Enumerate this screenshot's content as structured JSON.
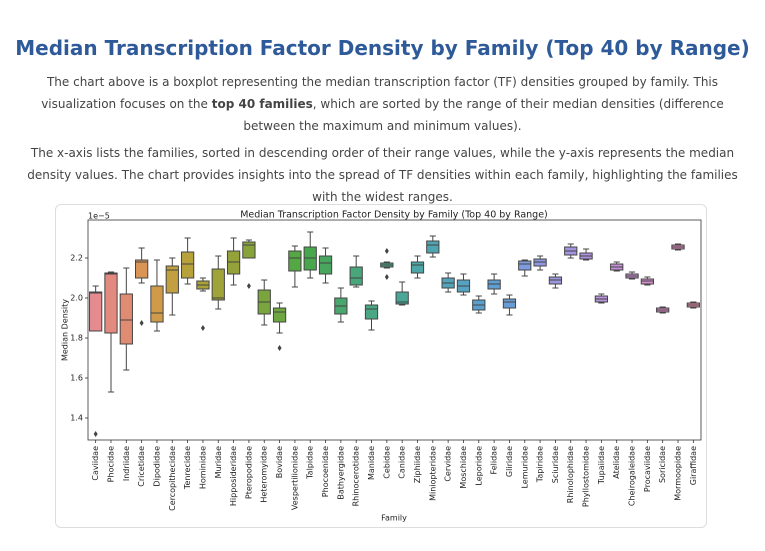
{
  "header": {
    "title": "Median Transcription Factor Density by Family (Top 40 by Range)"
  },
  "paragraphs": [
    [
      "The chart above is a boxplot representing the median transcription factor (TF) densities grouped by family. This visualization focuses on the ",
      "top 40 families",
      ", which are sorted by the range of their median densities (difference between the maximum and minimum values)."
    ],
    [
      "The x-axis lists the families, sorted in descending order of their range values, while the y-axis represents the median density values. The chart provides insights into the spread of TF densities within each family, highlighting the families with the widest ranges."
    ]
  ],
  "chart_data": {
    "type": "boxplot",
    "title": "Median Transcription Factor Density by Family (Top 40 by Range)",
    "x_label": "Family",
    "y_label": "Median Density",
    "y_offset_label": "1e−5",
    "ylim": [
      1.29,
      2.39
    ],
    "yticks": [
      {
        "value": 1.4,
        "label": "1.4"
      },
      {
        "value": 1.6,
        "label": "1.6"
      },
      {
        "value": 1.8,
        "label": "1.8"
      },
      {
        "value": 2.0,
        "label": "2.0"
      },
      {
        "value": 2.2,
        "label": "2.2"
      }
    ],
    "categories": [
      "Caviidae",
      "Phocidae",
      "Indriidae",
      "Cricetidae",
      "Dipodidae",
      "Cercopithecidae",
      "Tenrecidae",
      "Hominidae",
      "Muridae",
      "Hipposideridae",
      "Pteropodidae",
      "Heteromyidae",
      "Bovidae",
      "Vespertilionidae",
      "Talpidae",
      "Phocoenidae",
      "Bathyergidae",
      "Rhinocerotidae",
      "Manidae",
      "Cebidae",
      "Canidae",
      "Ziphiidae",
      "Miniopteridae",
      "Cervidae",
      "Moschidae",
      "Leporidae",
      "Felidae",
      "Gliridae",
      "Lemuridae",
      "Tapiridae",
      "Sciuridae",
      "Rhinolophidae",
      "Phyllostomidae",
      "Tupaiidae",
      "Atelidae",
      "Cheirogaleidae",
      "Procaviidae",
      "Soricidae",
      "Mormoopidae",
      "Giraffidae"
    ],
    "colors": [
      "#e58a8f",
      "#e38a80",
      "#e08c72",
      "#d99556",
      "#cf9b4a",
      "#c29f41",
      "#b6a13b",
      "#aaa239",
      "#a0a23a",
      "#95a23a",
      "#89a33b",
      "#79a43e",
      "#6ea640",
      "#55a744",
      "#48a74c",
      "#49a65e",
      "#4aa66e",
      "#49a67a",
      "#49a783",
      "#48a78c",
      "#4aa798",
      "#4ca6a5",
      "#4ea5b0",
      "#52a4ba",
      "#56a2c3",
      "#5ba0cc",
      "#619fd3",
      "#689cd9",
      "#7f9be0",
      "#8e98e0",
      "#9a96e0",
      "#a494e0",
      "#ad93df",
      "#b892dd",
      "#c391d9",
      "#cc8fd4",
      "#d48ccd",
      "#da8ac3",
      "#df89b8",
      "#e288ab"
    ],
    "boxes": [
      {
        "min": 1.835,
        "q1": 1.835,
        "median": 2.025,
        "q3": 2.03,
        "max": 2.06,
        "outliers": [
          1.32
        ]
      },
      {
        "min": 1.53,
        "q1": 1.825,
        "median": 2.12,
        "q3": 2.125,
        "max": 2.13,
        "outliers": []
      },
      {
        "min": 1.64,
        "q1": 1.77,
        "median": 1.89,
        "q3": 2.02,
        "max": 2.15,
        "outliers": []
      },
      {
        "min": 2.075,
        "q1": 2.1,
        "median": 2.18,
        "q3": 2.19,
        "max": 2.25,
        "outliers": [
          1.875
        ]
      },
      {
        "min": 1.835,
        "q1": 1.88,
        "median": 1.925,
        "q3": 2.06,
        "max": 2.19,
        "outliers": []
      },
      {
        "min": 1.915,
        "q1": 2.025,
        "median": 2.14,
        "q3": 2.16,
        "max": 2.2,
        "outliers": []
      },
      {
        "min": 2.07,
        "q1": 2.1,
        "median": 2.17,
        "q3": 2.23,
        "max": 2.3,
        "outliers": []
      },
      {
        "min": 2.035,
        "q1": 2.045,
        "median": 2.065,
        "q3": 2.085,
        "max": 2.1,
        "outliers": [
          1.85
        ]
      },
      {
        "min": 1.945,
        "q1": 1.99,
        "median": 2.0,
        "q3": 2.145,
        "max": 2.21,
        "outliers": []
      },
      {
        "min": 2.065,
        "q1": 2.12,
        "median": 2.18,
        "q3": 2.235,
        "max": 2.3,
        "outliers": []
      },
      {
        "min": 2.2,
        "q1": 2.2,
        "median": 2.265,
        "q3": 2.28,
        "max": 2.29,
        "outliers": [
          2.06
        ]
      },
      {
        "min": 1.865,
        "q1": 1.92,
        "median": 1.98,
        "q3": 2.04,
        "max": 2.09,
        "outliers": []
      },
      {
        "min": 1.825,
        "q1": 1.88,
        "median": 1.93,
        "q3": 1.95,
        "max": 1.975,
        "outliers": [
          1.75
        ]
      },
      {
        "min": 2.055,
        "q1": 2.135,
        "median": 2.2,
        "q3": 2.235,
        "max": 2.26,
        "outliers": []
      },
      {
        "min": 2.1,
        "q1": 2.14,
        "median": 2.2,
        "q3": 2.255,
        "max": 2.33,
        "outliers": []
      },
      {
        "min": 2.075,
        "q1": 2.12,
        "median": 2.175,
        "q3": 2.21,
        "max": 2.25,
        "outliers": []
      },
      {
        "min": 1.88,
        "q1": 1.92,
        "median": 1.96,
        "q3": 2.0,
        "max": 2.05,
        "outliers": []
      },
      {
        "min": 2.055,
        "q1": 2.065,
        "median": 2.1,
        "q3": 2.155,
        "max": 2.21,
        "outliers": []
      },
      {
        "min": 1.84,
        "q1": 1.895,
        "median": 1.945,
        "q3": 1.965,
        "max": 1.985,
        "outliers": []
      },
      {
        "min": 2.15,
        "q1": 2.155,
        "median": 2.165,
        "q3": 2.175,
        "max": 2.18,
        "outliers": [
          2.235,
          2.105
        ]
      },
      {
        "min": 1.965,
        "q1": 1.97,
        "median": 1.98,
        "q3": 2.03,
        "max": 2.08,
        "outliers": []
      },
      {
        "min": 2.1,
        "q1": 2.125,
        "median": 2.165,
        "q3": 2.18,
        "max": 2.21,
        "outliers": []
      },
      {
        "min": 2.205,
        "q1": 2.225,
        "median": 2.265,
        "q3": 2.285,
        "max": 2.31,
        "outliers": []
      },
      {
        "min": 2.03,
        "q1": 2.05,
        "median": 2.075,
        "q3": 2.1,
        "max": 2.125,
        "outliers": []
      },
      {
        "min": 2.015,
        "q1": 2.03,
        "median": 2.06,
        "q3": 2.09,
        "max": 2.12,
        "outliers": []
      },
      {
        "min": 1.925,
        "q1": 1.94,
        "median": 1.965,
        "q3": 1.99,
        "max": 2.01,
        "outliers": []
      },
      {
        "min": 2.02,
        "q1": 2.045,
        "median": 2.07,
        "q3": 2.09,
        "max": 2.12,
        "outliers": []
      },
      {
        "min": 1.915,
        "q1": 1.95,
        "median": 1.98,
        "q3": 1.995,
        "max": 2.015,
        "outliers": []
      },
      {
        "min": 2.11,
        "q1": 2.14,
        "median": 2.17,
        "q3": 2.185,
        "max": 2.19,
        "outliers": []
      },
      {
        "min": 2.14,
        "q1": 2.16,
        "median": 2.18,
        "q3": 2.195,
        "max": 2.21,
        "outliers": []
      },
      {
        "min": 2.05,
        "q1": 2.07,
        "median": 2.09,
        "q3": 2.105,
        "max": 2.12,
        "outliers": []
      },
      {
        "min": 2.2,
        "q1": 2.215,
        "median": 2.235,
        "q3": 2.255,
        "max": 2.27,
        "outliers": []
      },
      {
        "min": 2.19,
        "q1": 2.195,
        "median": 2.21,
        "q3": 2.225,
        "max": 2.245,
        "outliers": []
      },
      {
        "min": 1.975,
        "q1": 1.98,
        "median": 1.995,
        "q3": 2.01,
        "max": 2.02,
        "outliers": []
      },
      {
        "min": 2.135,
        "q1": 2.14,
        "median": 2.155,
        "q3": 2.17,
        "max": 2.18,
        "outliers": []
      },
      {
        "min": 2.095,
        "q1": 2.1,
        "median": 2.11,
        "q3": 2.12,
        "max": 2.13,
        "outliers": []
      },
      {
        "min": 2.065,
        "q1": 2.07,
        "median": 2.085,
        "q3": 2.095,
        "max": 2.105,
        "outliers": []
      },
      {
        "min": 1.925,
        "q1": 1.93,
        "median": 1.94,
        "q3": 1.95,
        "max": 1.955,
        "outliers": []
      },
      {
        "min": 2.24,
        "q1": 2.245,
        "median": 2.255,
        "q3": 2.265,
        "max": 2.27,
        "outliers": []
      },
      {
        "min": 1.95,
        "q1": 1.955,
        "median": 1.965,
        "q3": 1.975,
        "max": 1.98,
        "outliers": []
      }
    ]
  }
}
